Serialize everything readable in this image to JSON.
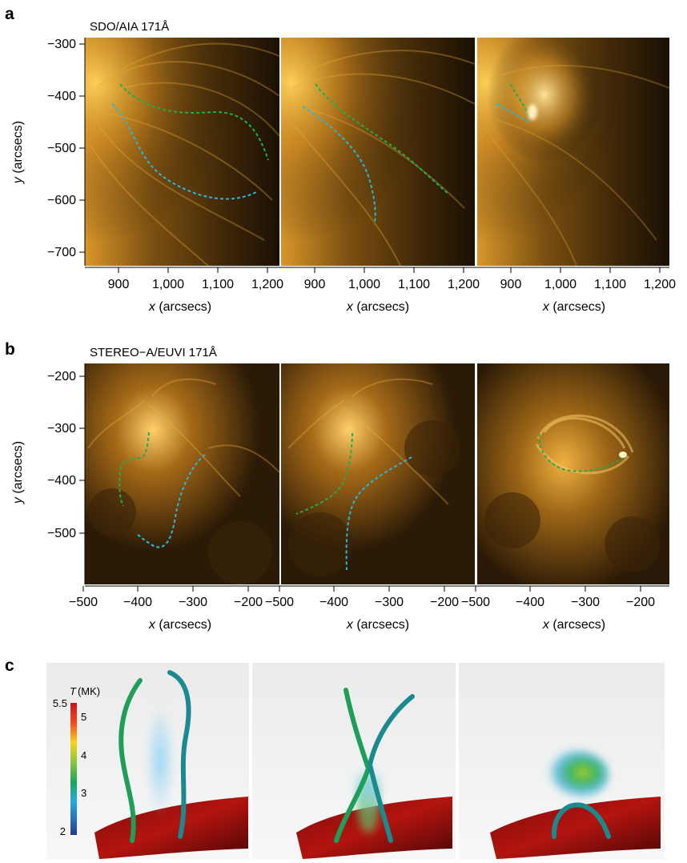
{
  "panel_a": {
    "letter": "a",
    "instrument": "SDO/AIA 171Å",
    "ylabel_italic": "y",
    "ylabel_rest": " (arcsecs)",
    "xlabel_italic": "x",
    "xlabel_rest": " (arcsecs)",
    "y_ticks": [
      "−300",
      "−400",
      "−500",
      "−600",
      "−700"
    ],
    "x_ticks_sub1": [
      "900",
      "1,000",
      "1,100",
      "1,200"
    ],
    "x_ticks_sub2": [
      "900",
      "1,000",
      "1,100",
      "1,200"
    ],
    "x_ticks_sub3": [
      "900",
      "1,000",
      "1,100",
      "1,200"
    ]
  },
  "panel_b": {
    "letter": "b",
    "instrument": "STEREO−A/EUVI 171Å",
    "ylabel_italic": "y",
    "ylabel_rest": " (arcsecs)",
    "xlabel_italic": "x",
    "xlabel_rest": " (arcsecs)",
    "y_ticks": [
      "−200",
      "−300",
      "−400",
      "−500"
    ],
    "x_ticks_sub1": [
      "−500",
      "−400",
      "−300",
      "−200"
    ],
    "x_ticks_sub2": [
      "−500",
      "−400",
      "−300",
      "−200"
    ],
    "x_ticks_sub3": [
      "−500",
      "−400",
      "−300",
      "−200"
    ]
  },
  "panel_c": {
    "letter": "c",
    "colorbar_title_italic": "T",
    "colorbar_title_rest": "(MK)",
    "colorbar_ticks": [
      "5.5",
      "5",
      "4",
      "3",
      "2"
    ]
  },
  "colors": {
    "euv_bright": "#f5b431",
    "euv_dark": "#140c03",
    "trace_green": "#1fae4a",
    "trace_cyan": "#2bb6d6",
    "tube_green": "#1f9e5a",
    "tube_teal": "#1b8a8f"
  }
}
